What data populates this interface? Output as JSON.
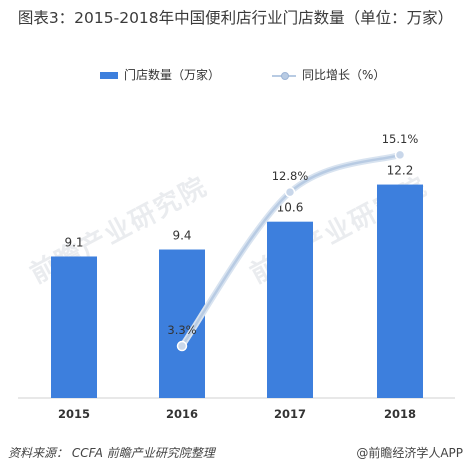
{
  "title": "图表3：2015-2018年中国便利店行业门店数量（单位：万家）",
  "watermark": "前瞻产业研究院",
  "chart_data": {
    "type": "bar",
    "categories": [
      "2015",
      "2016",
      "2017",
      "2018"
    ],
    "series": [
      {
        "name": "门店数量（万家）",
        "type": "bar",
        "values": [
          9.1,
          9.4,
          10.6,
          12.2
        ],
        "color": "#3d7fdd"
      },
      {
        "name": "同比增长（%）",
        "type": "line",
        "values": [
          null,
          3.3,
          12.8,
          15.1
        ],
        "color": "#b8cbe3"
      }
    ],
    "bar_labels": [
      "9.1",
      "9.4",
      "10.6",
      "12.2"
    ],
    "line_labels": [
      "3.3%",
      "12.8%",
      "15.1%"
    ],
    "legend_position": "top",
    "grid": false
  },
  "footer": {
    "source": "资料来源：  CCFA  前瞻产业研究院整理",
    "brand": "@前瞻经济学人APP"
  }
}
